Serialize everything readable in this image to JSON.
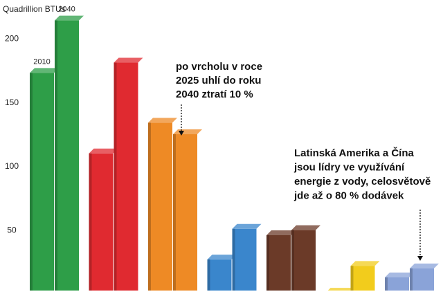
{
  "chart_data": {
    "type": "bar",
    "unit_label": "Quadrillion BTUs",
    "ylim": [
      0,
      230
    ],
    "yticks": [
      50,
      100,
      150,
      200
    ],
    "grid": false,
    "legend": "none",
    "groups": [
      {
        "color": "#2e9e48",
        "values": [
          173,
          214
        ],
        "labels": [
          "2010",
          "2040"
        ]
      },
      {
        "color": "#e02a30",
        "values": [
          110,
          181
        ],
        "labels": [
          "",
          ""
        ]
      },
      {
        "color": "#ee8a25",
        "values": [
          134,
          125
        ],
        "labels": [
          "",
          ""
        ]
      },
      {
        "color": "#3a86cc",
        "values": [
          27,
          51
        ],
        "labels": [
          "",
          ""
        ]
      },
      {
        "color": "#6b3a28",
        "values": [
          46,
          50
        ],
        "labels": [
          "",
          ""
        ]
      },
      {
        "color": "#f2cc1c",
        "values": [
          1,
          22
        ],
        "labels": [
          "",
          ""
        ]
      },
      {
        "color": "#8aa3d8",
        "values": [
          13,
          20
        ],
        "labels": [
          "",
          ""
        ]
      }
    ],
    "annotations": [
      {
        "lines": [
          "po vrcholu v roce",
          "2025 uhlí do roku",
          "2040 ztratí 10 %"
        ]
      },
      {
        "lines": [
          "Latinská Amerika a Čína",
          "jsou lídry ve využívání",
          "energie z vody, celosvětově",
          "jde až o 80 % dodávek"
        ]
      }
    ]
  }
}
